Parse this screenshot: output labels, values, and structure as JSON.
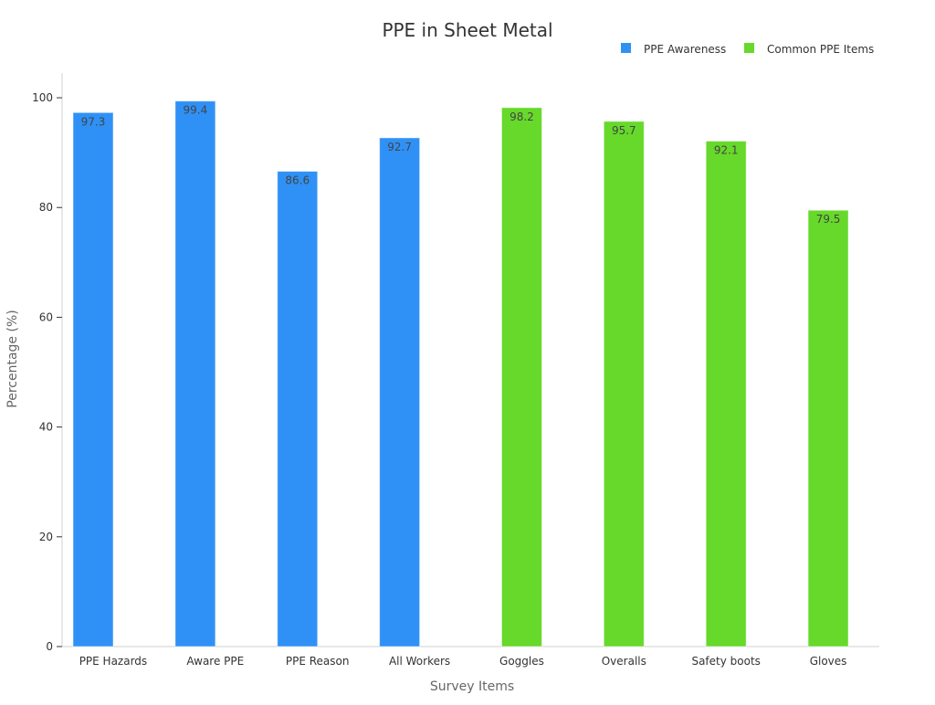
{
  "chart_data": {
    "type": "bar",
    "title": "PPE in Sheet Metal",
    "xlabel": "Survey Items",
    "ylabel": "Percentage (%)",
    "ylim": [
      0,
      104.5
    ],
    "yticks": [
      0,
      20,
      40,
      60,
      80,
      100
    ],
    "grid": false,
    "legend_position": "top-right",
    "categories": [
      "PPE Hazards",
      "Aware PPE",
      "PPE Reason",
      "All Workers",
      "Goggles",
      "Overalls",
      "Safety boots",
      "Gloves"
    ],
    "series": [
      {
        "name": "PPE Awareness",
        "color": "#2f91f6",
        "values": [
          97.3,
          99.4,
          86.6,
          92.7,
          null,
          null,
          null,
          null
        ]
      },
      {
        "name": "Common PPE Items",
        "color": "#66d92a",
        "values": [
          null,
          null,
          null,
          null,
          98.2,
          95.7,
          92.1,
          79.5
        ]
      }
    ]
  }
}
